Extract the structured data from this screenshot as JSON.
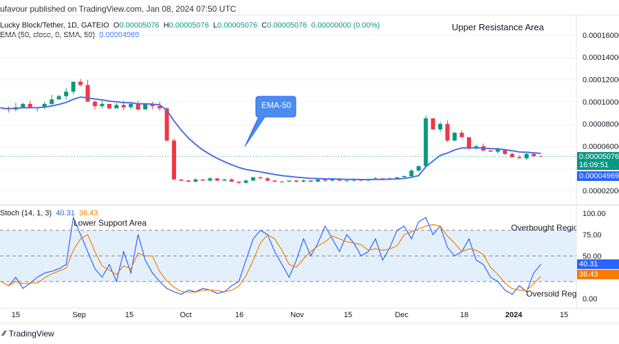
{
  "header": {
    "published": "ufavour published on TradingView.com, Jan 08, 2024 07:50 UTC",
    "symbol": "Lucky Block/Tether, 1D, GATEIO",
    "o_label": "O",
    "o": "0.00005076",
    "h_label": "H",
    "h": "0.00005076",
    "l_label": "L",
    "l": "0.00005076",
    "c_label": "C",
    "c": "0.00005076",
    "change": "0.00000000 (0.00%)",
    "ema_label": "EMA (50, close, 0, SMA, 50)",
    "ema_value": "0.00004969"
  },
  "price_axis": {
    "ticks": [
      "0.00016000",
      "0.00014000",
      "0.00012000",
      "0.00010000",
      "0.00008000",
      "0.00006000",
      "0.00002000"
    ],
    "tick_values": [
      0.00016,
      0.00014,
      0.00012,
      0.0001,
      8e-05,
      6e-05,
      2e-05
    ],
    "last_price": "0.00005076",
    "countdown": "16:09:51",
    "ema_tag": "0.00004969"
  },
  "stoch": {
    "label": "Stoch (14, 1, 3)",
    "k_value": "40.31",
    "d_value": "36.43",
    "ticks": [
      "100.00",
      "75.00",
      "50.00",
      "0.00"
    ],
    "k": [
      20,
      15,
      25,
      12,
      18,
      25,
      30,
      32,
      35,
      40,
      95,
      75,
      55,
      35,
      25,
      40,
      20,
      55,
      30,
      75,
      45,
      30,
      20,
      12,
      8,
      5,
      10,
      8,
      12,
      10,
      6,
      8,
      15,
      20,
      45,
      70,
      80,
      75,
      55,
      40,
      25,
      45,
      70,
      50,
      65,
      85,
      70,
      55,
      75,
      65,
      50,
      55,
      70,
      45,
      60,
      80,
      85,
      70,
      90,
      95,
      75,
      85,
      60,
      50,
      55,
      70,
      45,
      40,
      25,
      20,
      10,
      5,
      15,
      8,
      30,
      40.31
    ]
  },
  "chart_data": {
    "type": "candlestick",
    "closes": [
      9.4e-05,
      9.3e-05,
      9.5e-05,
      9.8e-05,
      9.4e-05,
      9.5e-05,
      9.8e-05,
      0.000102,
      0.000105,
      0.000109,
      0.000118,
      0.000115,
      0.0001,
      9.6e-05,
      9.8e-05,
      9.4e-05,
      9.7e-05,
      9.5e-05,
      9.8e-05,
      9.3e-05,
      9.8e-05,
      9.6e-05,
      9.4e-05,
      6.5e-05,
      3e-05,
      2.9e-05,
      2.8e-05,
      3e-05,
      2.9e-05,
      3.1e-05,
      2.9e-05,
      3e-05,
      2.8e-05,
      2.7e-05,
      2.9e-05,
      3.2e-05,
      3.1e-05,
      2.9e-05,
      2.8e-05,
      2.8e-05,
      2.9e-05,
      2.8e-05,
      2.9e-05,
      2.8e-05,
      3e-05,
      2.9e-05,
      3e-05,
      2.9e-05,
      2.9e-05,
      3e-05,
      2.9e-05,
      3e-05,
      3.1e-05,
      3e-05,
      3.1e-05,
      3.2e-05,
      3.3e-05,
      3.8e-05,
      4.2e-05,
      8.5e-05,
      7.5e-05,
      8e-05,
      6.5e-05,
      7.2e-05,
      6.8e-05,
      5.8e-05,
      6e-05,
      5.6e-05,
      5.5e-05,
      5.7e-05,
      5.3e-05,
      5e-05,
      4.9e-05,
      5.3e-05,
      5.1e-05,
      5.076e-05
    ],
    "x_ticks": [
      "15",
      "Sep",
      "15",
      "Oct",
      "16",
      "Nov",
      "15",
      "Dec",
      "18",
      "2024",
      "15"
    ],
    "up_color": "#089981",
    "down_color": "#f23645",
    "ema_color": "#4a6fe3",
    "k_color": "#2962ff",
    "d_color": "#f57c00"
  },
  "annotations": {
    "upper": "Upper Resistance Area",
    "lower": "Lower Support Area",
    "ema": "EMA-50",
    "overbought": "Overbought Regio",
    "oversold": "Oversold Regi"
  },
  "footer": {
    "brand": "TradingView"
  }
}
